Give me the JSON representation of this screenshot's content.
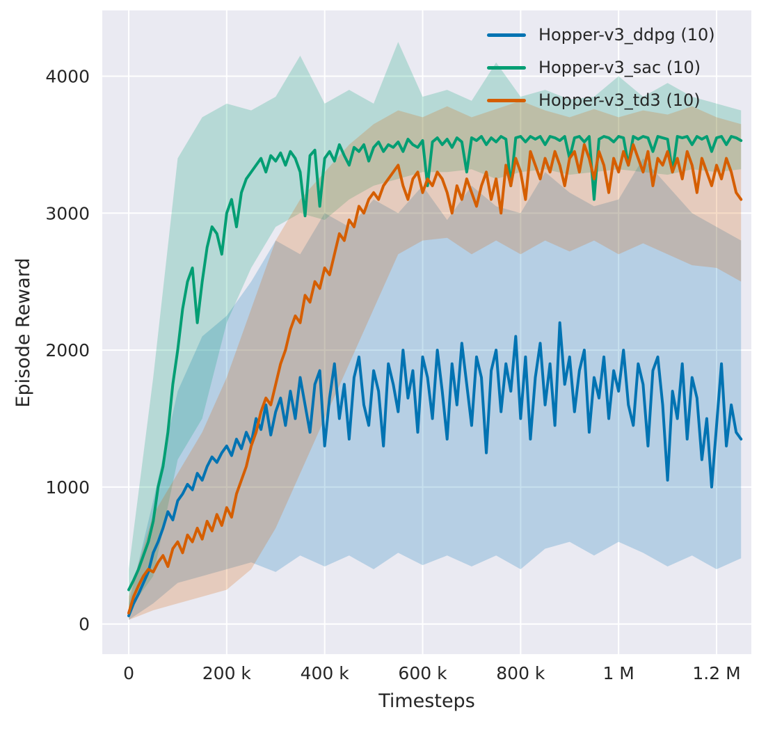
{
  "chart_data": {
    "type": "line",
    "title": "",
    "xlabel": "Timesteps",
    "ylabel": "Episode Reward",
    "xlim": [
      -54000,
      1271000
    ],
    "ylim": [
      -220,
      4480
    ],
    "grid": true,
    "legend_position": "upper right",
    "background": "#eaeaf2",
    "grid_color": "#ffffff",
    "text_color": "#262626",
    "x_ticks": {
      "values": [
        0,
        200000,
        400000,
        600000,
        800000,
        1000000,
        1200000
      ],
      "labels": [
        "0",
        "200 k",
        "400 k",
        "600 k",
        "800 k",
        "1 M",
        "1.2 M"
      ]
    },
    "y_ticks": {
      "values": [
        0,
        1000,
        2000,
        3000,
        4000
      ],
      "labels": [
        "0",
        "1000",
        "2000",
        "3000",
        "4000"
      ]
    },
    "x_start": 0,
    "x_step": 10000,
    "band_x": [
      0,
      50000,
      100000,
      150000,
      200000,
      250000,
      300000,
      350000,
      400000,
      450000,
      500000,
      550000,
      600000,
      650000,
      700000,
      750000,
      800000,
      850000,
      900000,
      950000,
      1000000,
      1050000,
      1100000,
      1150000,
      1200000,
      1250000
    ],
    "series": [
      {
        "id": "ddpg",
        "name": "Hopper-v3_ddpg (10)",
        "color": "#0173b2",
        "band_opacity": 0.22,
        "values": [
          60,
          150,
          220,
          300,
          380,
          520,
          600,
          700,
          820,
          760,
          900,
          950,
          1020,
          980,
          1100,
          1050,
          1150,
          1220,
          1180,
          1250,
          1300,
          1230,
          1350,
          1280,
          1400,
          1320,
          1500,
          1420,
          1600,
          1380,
          1550,
          1650,
          1450,
          1700,
          1500,
          1800,
          1600,
          1400,
          1750,
          1850,
          1300,
          1650,
          1900,
          1500,
          1750,
          1350,
          1800,
          1950,
          1600,
          1450,
          1850,
          1700,
          1300,
          1900,
          1750,
          1550,
          2000,
          1650,
          1850,
          1400,
          1950,
          1800,
          1500,
          2000,
          1700,
          1350,
          1900,
          1600,
          2050,
          1750,
          1450,
          1950,
          1800,
          1250,
          1850,
          2000,
          1550,
          1900,
          1700,
          2100,
          1500,
          1950,
          1350,
          1800,
          2050,
          1600,
          1900,
          1450,
          2200,
          1750,
          1950,
          1550,
          1850,
          2000,
          1400,
          1800,
          1650,
          1950,
          1500,
          1850,
          1700,
          2000,
          1600,
          1450,
          1900,
          1750,
          1300,
          1850,
          1950,
          1600,
          1050,
          1700,
          1500,
          1900,
          1350,
          1800,
          1650,
          1200,
          1500,
          1000,
          1450,
          1900,
          1300,
          1600,
          1400,
          1350
        ],
        "band_lo": [
          30,
          150,
          300,
          350,
          400,
          450,
          380,
          500,
          420,
          500,
          400,
          520,
          430,
          500,
          420,
          500,
          400,
          550,
          600,
          500,
          600,
          520,
          420,
          500,
          400,
          480
        ],
        "band_hi": [
          150,
          900,
          1700,
          2100,
          2250,
          2500,
          2800,
          2700,
          3000,
          2900,
          3100,
          3000,
          3200,
          2950,
          3200,
          3050,
          3000,
          3300,
          3150,
          3050,
          3100,
          3400,
          3200,
          3000,
          2900,
          2800
        ]
      },
      {
        "id": "sac",
        "name": "Hopper-v3_sac (10)",
        "color": "#029e73",
        "band_opacity": 0.22,
        "values": [
          250,
          320,
          400,
          500,
          600,
          750,
          1000,
          1150,
          1400,
          1750,
          2000,
          2300,
          2500,
          2600,
          2200,
          2500,
          2750,
          2900,
          2850,
          2700,
          3000,
          3100,
          2900,
          3150,
          3250,
          3300,
          3350,
          3400,
          3300,
          3420,
          3380,
          3440,
          3350,
          3450,
          3400,
          3300,
          2980,
          3420,
          3460,
          3050,
          3400,
          3450,
          3380,
          3500,
          3420,
          3350,
          3480,
          3450,
          3500,
          3380,
          3480,
          3520,
          3450,
          3500,
          3480,
          3520,
          3450,
          3540,
          3500,
          3480,
          3530,
          3200,
          3520,
          3550,
          3500,
          3540,
          3480,
          3550,
          3520,
          3300,
          3550,
          3530,
          3560,
          3500,
          3550,
          3520,
          3560,
          3540,
          3200,
          3550,
          3560,
          3520,
          3560,
          3540,
          3560,
          3500,
          3560,
          3550,
          3530,
          3560,
          3400,
          3550,
          3560,
          3520,
          3560,
          3100,
          3540,
          3560,
          3550,
          3520,
          3560,
          3550,
          3350,
          3560,
          3540,
          3560,
          3550,
          3450,
          3560,
          3550,
          3540,
          3300,
          3560,
          3550,
          3560,
          3500,
          3560,
          3540,
          3560,
          3450,
          3550,
          3560,
          3500,
          3560,
          3550,
          3530
        ],
        "band_lo": [
          100,
          350,
          1200,
          1500,
          2200,
          2600,
          2900,
          3000,
          2950,
          3100,
          3200,
          3250,
          3300,
          3300,
          3320,
          3250,
          3300,
          3320,
          3280,
          3300,
          3320,
          3300,
          3280,
          3320,
          3300,
          3320
        ],
        "band_hi": [
          400,
          1800,
          3400,
          3700,
          3800,
          3750,
          3850,
          4150,
          3800,
          3900,
          3800,
          4250,
          3850,
          3900,
          3820,
          4100,
          3850,
          3900,
          3830,
          3850,
          4000,
          3850,
          3950,
          3850,
          3800,
          3750
        ]
      },
      {
        "id": "td3",
        "name": "Hopper-v3_td3 (10)",
        "color": "#d55e00",
        "band_opacity": 0.22,
        "values": [
          80,
          200,
          280,
          350,
          400,
          380,
          450,
          500,
          420,
          550,
          600,
          520,
          650,
          600,
          700,
          620,
          750,
          680,
          800,
          720,
          850,
          780,
          950,
          1050,
          1150,
          1300,
          1400,
          1550,
          1650,
          1600,
          1750,
          1900,
          2000,
          2150,
          2250,
          2200,
          2400,
          2350,
          2500,
          2450,
          2600,
          2550,
          2700,
          2850,
          2800,
          2950,
          2900,
          3050,
          3000,
          3100,
          3150,
          3100,
          3200,
          3250,
          3300,
          3350,
          3200,
          3100,
          3250,
          3300,
          3150,
          3250,
          3200,
          3300,
          3250,
          3150,
          3000,
          3200,
          3100,
          3250,
          3150,
          3050,
          3200,
          3300,
          3100,
          3250,
          3000,
          3350,
          3200,
          3400,
          3300,
          3100,
          3450,
          3350,
          3250,
          3400,
          3300,
          3450,
          3350,
          3200,
          3400,
          3450,
          3300,
          3500,
          3400,
          3250,
          3450,
          3350,
          3150,
          3400,
          3300,
          3450,
          3350,
          3500,
          3400,
          3300,
          3450,
          3200,
          3400,
          3350,
          3450,
          3300,
          3400,
          3250,
          3450,
          3350,
          3150,
          3400,
          3300,
          3200,
          3350,
          3250,
          3400,
          3300,
          3150,
          3100
        ],
        "band_lo": [
          30,
          100,
          150,
          200,
          250,
          400,
          700,
          1100,
          1500,
          1900,
          2300,
          2700,
          2800,
          2820,
          2700,
          2800,
          2700,
          2800,
          2720,
          2800,
          2700,
          2780,
          2700,
          2620,
          2600,
          2500
        ],
        "band_hi": [
          200,
          800,
          1100,
          1400,
          1800,
          2300,
          2800,
          3100,
          3300,
          3500,
          3650,
          3750,
          3700,
          3780,
          3700,
          3760,
          3820,
          3750,
          3700,
          3760,
          3700,
          3750,
          3720,
          3780,
          3700,
          3650
        ]
      }
    ]
  }
}
